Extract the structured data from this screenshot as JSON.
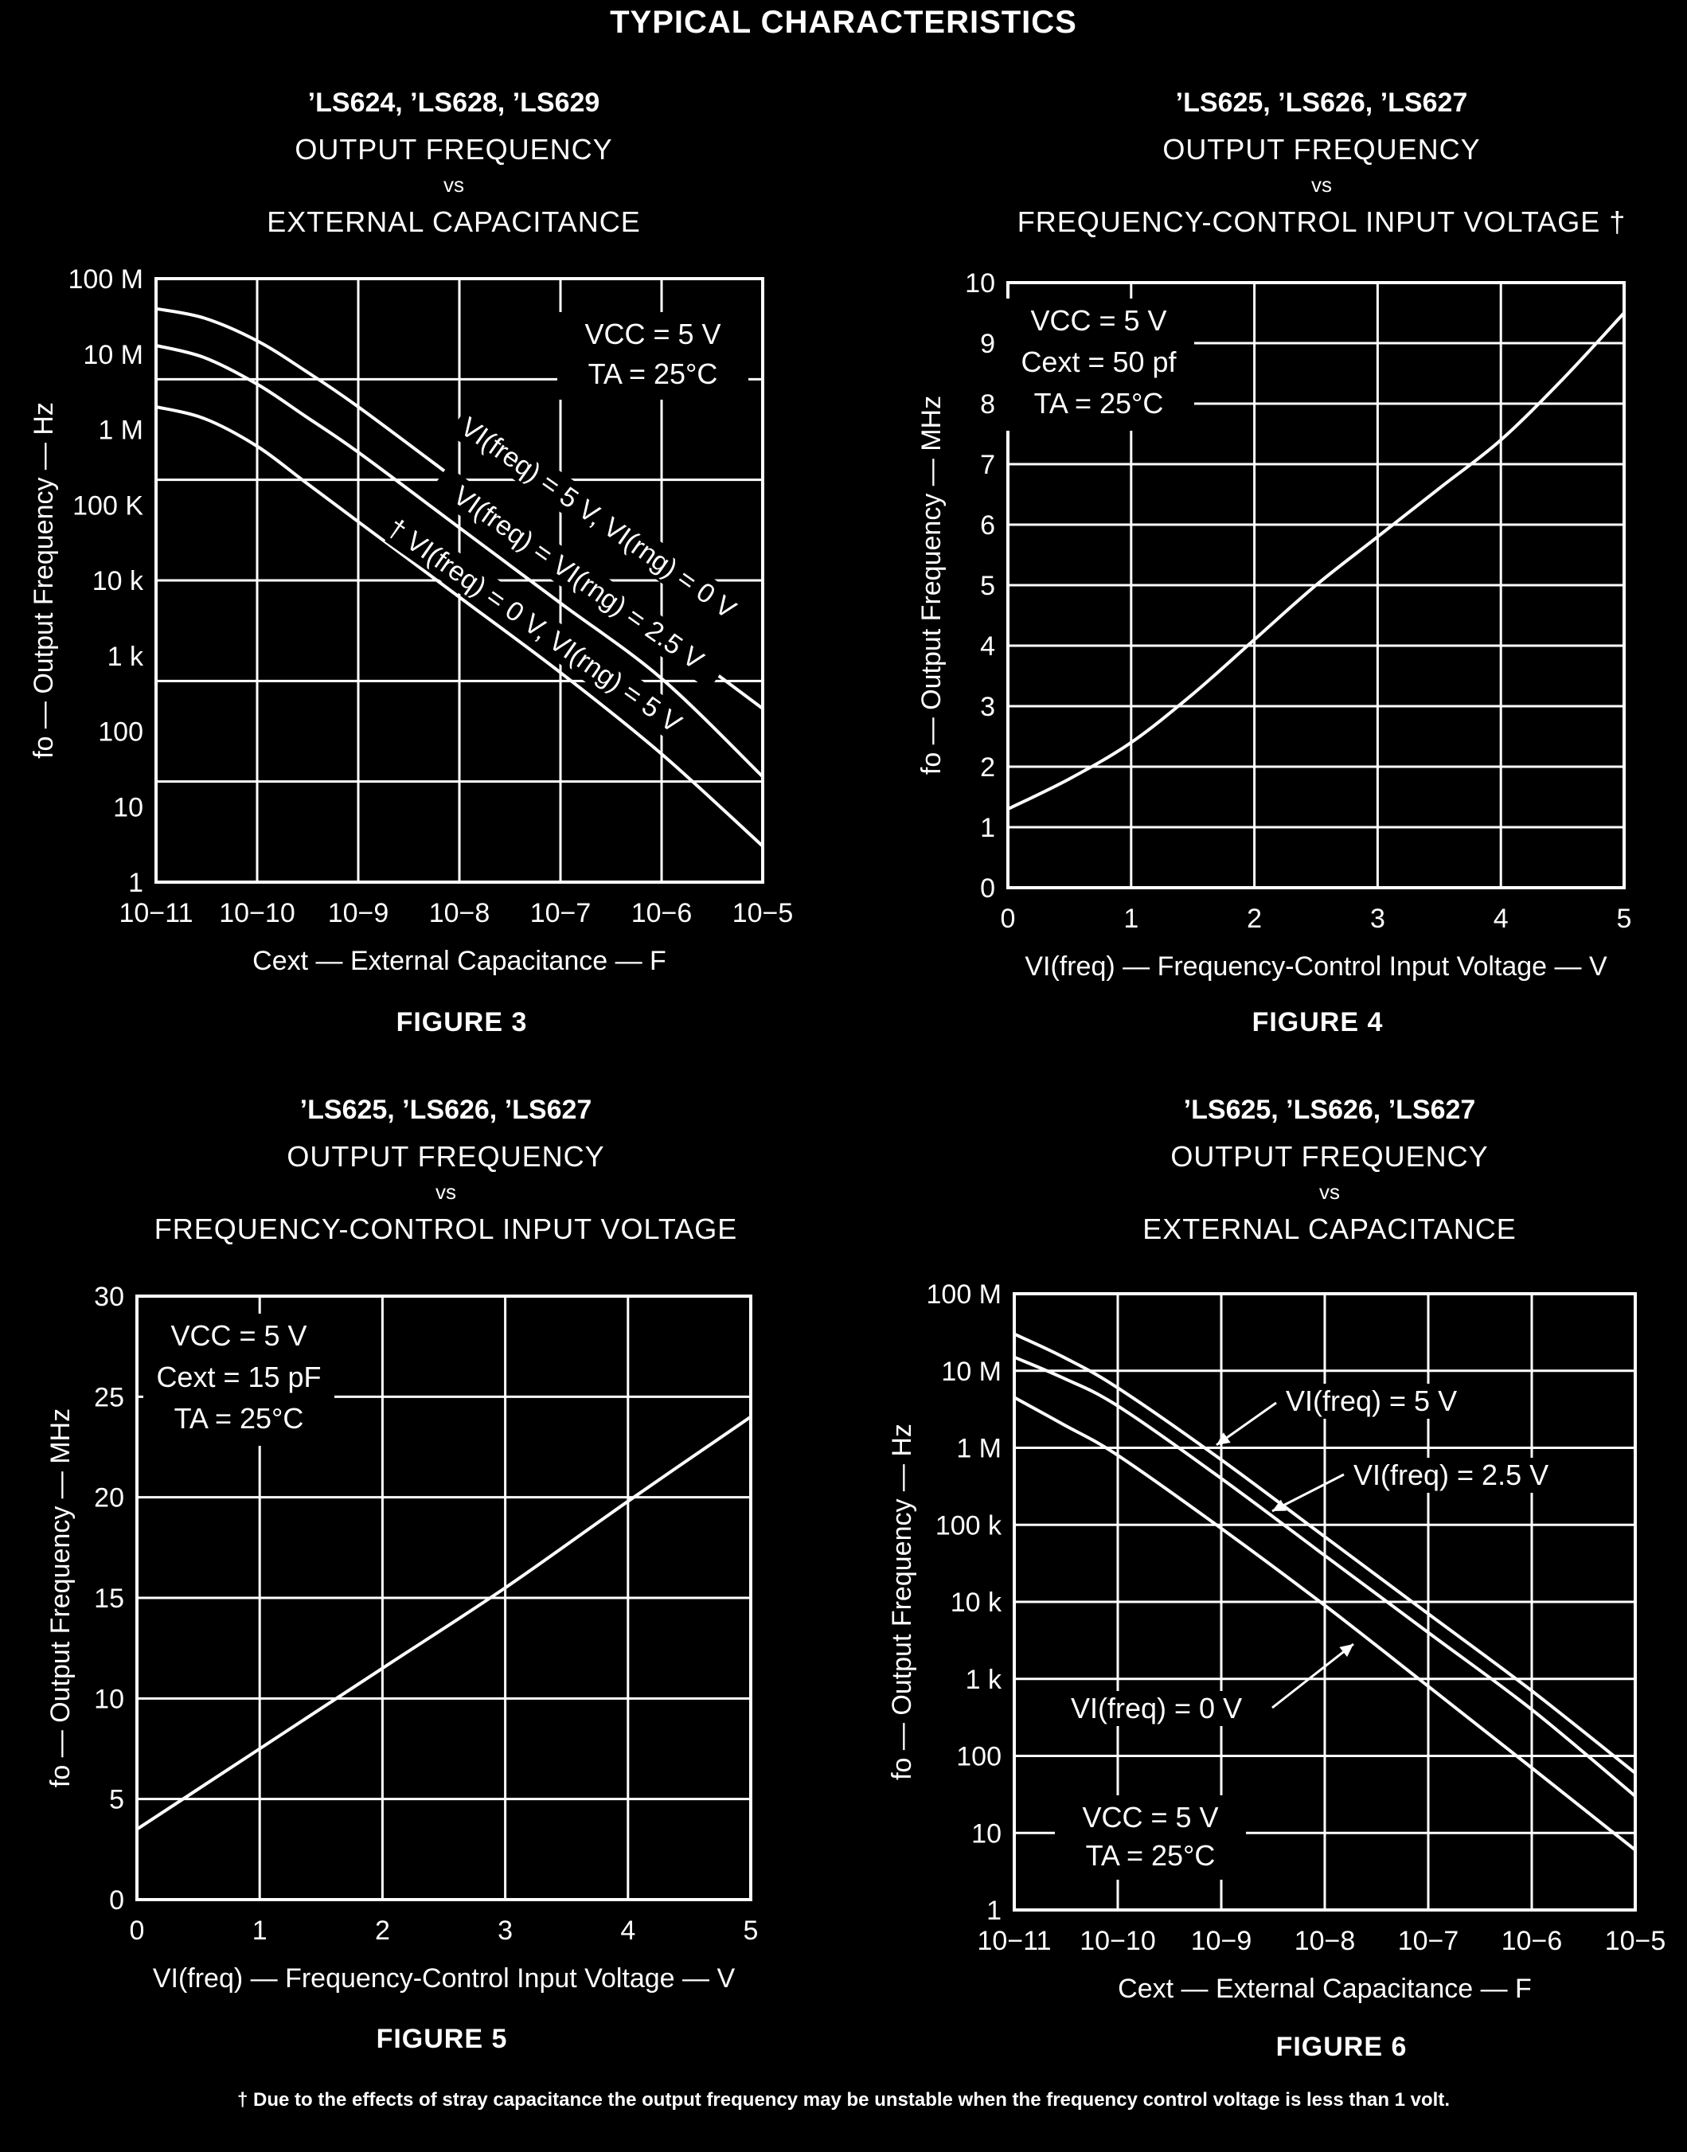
{
  "page": {
    "title": "TYPICAL CHARACTERISTICS",
    "footnote": "† Due to the effects of stray capacitance the output frequency may be unstable when the frequency control voltage is less than 1 volt."
  },
  "chart_data": [
    {
      "type": "line",
      "figure": "FIGURE 3",
      "devices": "’LS624, ’LS628, ’LS629",
      "title_line1": "OUTPUT FREQUENCY",
      "title_vs": "vs",
      "title_line2": "EXTERNAL CAPACITANCE",
      "xlabel": "Cext — External Capacitance — F",
      "ylabel": "fo — Output Frequency — Hz",
      "xscale": "log",
      "yscale": "log",
      "xlim": [
        1e-11,
        1e-05
      ],
      "ylim": [
        1,
        100000000.0
      ],
      "xticks": [
        1e-11,
        1e-10,
        1e-09,
        1e-08,
        1e-07,
        1e-06,
        1e-05
      ],
      "xtick_labels": [
        "10−11",
        "10−10",
        "10−9",
        "10−8",
        "10−7",
        "10−6",
        "10−5"
      ],
      "yticks": [
        1,
        10,
        100,
        1000,
        10000,
        100000,
        1000000,
        10000000,
        100000000
      ],
      "ytick_labels": [
        "1",
        "10",
        "100",
        "1 k",
        "10 k",
        "100 K",
        "1 M",
        "10 M",
        "100 M"
      ],
      "conditions": [
        "VCC = 5 V",
        "TA = 25°C"
      ],
      "series": [
        {
          "name": "VI(freq) = 5 V, VI(rng) = 0 V",
          "x": [
            1e-11,
            3e-11,
            1e-10,
            3e-10,
            1e-09,
            1e-08,
            1e-07,
            1e-06,
            1e-05
          ],
          "y": [
            40000000,
            30000000,
            15000000,
            6000000,
            2000000,
            200000,
            20000,
            2000,
            200
          ]
        },
        {
          "name": "VI(freq) = VI(rng) = 2.5 V",
          "x": [
            1e-11,
            3e-11,
            1e-10,
            3e-10,
            1e-09,
            1e-08,
            1e-07,
            1e-06,
            1e-05
          ],
          "y": [
            13000000,
            9000000,
            4000000,
            1500000,
            500000,
            50000,
            5000,
            500,
            25
          ]
        },
        {
          "name": "† VI(freq) = 0 V, VI(rng) = 5 V",
          "x": [
            1e-11,
            3e-11,
            1e-10,
            3e-10,
            1e-09,
            1e-08,
            1e-07,
            1e-06,
            1e-05
          ],
          "y": [
            2000000,
            1400000,
            600000,
            200000,
            60000,
            6000,
            600,
            50,
            3
          ]
        }
      ]
    },
    {
      "type": "line",
      "figure": "FIGURE 4",
      "devices": "’LS625, ’LS626, ’LS627",
      "title_line1": "OUTPUT FREQUENCY",
      "title_vs": "vs",
      "title_line2": "FREQUENCY-CONTROL INPUT VOLTAGE †",
      "xlabel": "VI(freq) — Frequency-Control Input Voltage — V",
      "ylabel": "fo — Output Frequency — MHz",
      "xscale": "linear",
      "yscale": "linear",
      "xlim": [
        0,
        5
      ],
      "ylim": [
        0,
        10
      ],
      "xticks": [
        0,
        1,
        2,
        3,
        4,
        5
      ],
      "xtick_labels": [
        "0",
        "1",
        "2",
        "3",
        "4",
        "5"
      ],
      "yticks": [
        0,
        1,
        2,
        3,
        4,
        5,
        6,
        7,
        8,
        9,
        10
      ],
      "ytick_labels": [
        "0",
        "1",
        "2",
        "3",
        "4",
        "5",
        "6",
        "7",
        "8",
        "9",
        "10"
      ],
      "conditions": [
        "VCC = 5 V",
        "Cext = 50 pf",
        "TA = 25°C"
      ],
      "series": [
        {
          "name": "fo",
          "x": [
            0,
            0.5,
            1,
            1.5,
            2,
            2.5,
            3,
            3.5,
            4,
            4.5,
            5
          ],
          "y": [
            1.3,
            1.8,
            2.4,
            3.2,
            4.1,
            5.0,
            5.8,
            6.6,
            7.4,
            8.4,
            9.5
          ]
        }
      ]
    },
    {
      "type": "line",
      "figure": "FIGURE 5",
      "devices": "’LS625, ’LS626, ’LS627",
      "title_line1": "OUTPUT FREQUENCY",
      "title_vs": "vs",
      "title_line2": "FREQUENCY-CONTROL INPUT VOLTAGE",
      "xlabel": "VI(freq) — Frequency-Control Input Voltage — V",
      "ylabel": "fo — Output Frequency — MHz",
      "xscale": "linear",
      "yscale": "linear",
      "xlim": [
        0,
        5
      ],
      "ylim": [
        0,
        30
      ],
      "xticks": [
        0,
        1,
        2,
        3,
        4,
        5
      ],
      "xtick_labels": [
        "0",
        "1",
        "2",
        "3",
        "4",
        "5"
      ],
      "yticks": [
        0,
        5,
        10,
        15,
        20,
        25,
        30
      ],
      "ytick_labels": [
        "0",
        "5",
        "10",
        "15",
        "20",
        "25",
        "30"
      ],
      "conditions": [
        "VCC = 5 V",
        "Cext = 15 pF",
        "TA = 25°C"
      ],
      "series": [
        {
          "name": "fo",
          "x": [
            0,
            1,
            2,
            3,
            4,
            5
          ],
          "y": [
            3.5,
            7.5,
            11.5,
            15.5,
            19.8,
            24
          ]
        }
      ]
    },
    {
      "type": "line",
      "figure": "FIGURE 6",
      "devices": "’LS625, ’LS626, ’LS627",
      "title_line1": "OUTPUT FREQUENCY",
      "title_vs": "vs",
      "title_line2": "EXTERNAL CAPACITANCE",
      "xlabel": "Cext — External Capacitance — F",
      "ylabel": "fo — Output Frequency — Hz",
      "xscale": "log",
      "yscale": "log",
      "xlim": [
        1e-11,
        1e-05
      ],
      "ylim": [
        1,
        100000000.0
      ],
      "xticks": [
        1e-11,
        1e-10,
        1e-09,
        1e-08,
        1e-07,
        1e-06,
        1e-05
      ],
      "xtick_labels": [
        "10−11",
        "10−10",
        "10−9",
        "10−8",
        "10−7",
        "10−6",
        "10−5"
      ],
      "yticks": [
        1,
        10,
        100,
        1000,
        10000,
        100000,
        1000000,
        10000000,
        100000000
      ],
      "ytick_labels": [
        "1",
        "10",
        "100",
        "1 k",
        "10 k",
        "100 k",
        "1 M",
        "10 M",
        "100 M"
      ],
      "conditions": [
        "VCC = 5 V",
        "TA = 25°C"
      ],
      "series": [
        {
          "name": "VI(freq) = 5 V",
          "x": [
            1e-11,
            3e-11,
            1e-10,
            1e-09,
            1e-08,
            1e-07,
            1e-06,
            1e-05
          ],
          "y": [
            30000000,
            15000000,
            6000000,
            700000,
            70000,
            7000,
            700,
            60
          ]
        },
        {
          "name": "VI(freq) = 2.5 V",
          "x": [
            1e-11,
            3e-11,
            1e-10,
            1e-09,
            1e-08,
            1e-07,
            1e-06,
            1e-05
          ],
          "y": [
            15000000,
            8000000,
            3500000,
            400000,
            40000,
            4000,
            400,
            30
          ]
        },
        {
          "name": "VI(freq) = 0 V",
          "x": [
            1e-11,
            3e-11,
            1e-10,
            1e-09,
            1e-08,
            1e-07,
            1e-06,
            1e-05
          ],
          "y": [
            4500000,
            2000000,
            800000,
            90000,
            9000,
            800,
            70,
            6
          ]
        }
      ]
    }
  ]
}
